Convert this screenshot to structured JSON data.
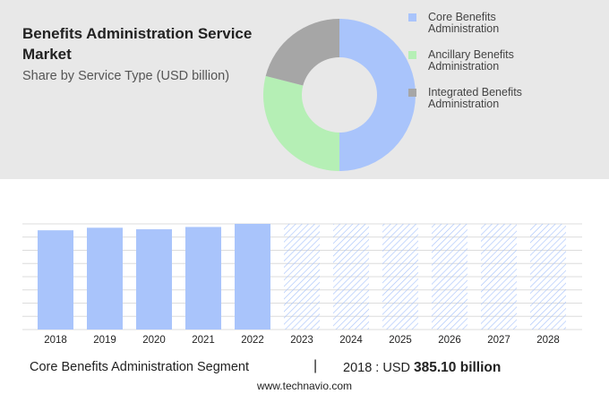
{
  "chart_data": [
    {
      "type": "pie",
      "title": "Benefits Administration Service Market",
      "subtitle": "Share by Service Type (USD billion)",
      "donut": true,
      "categories": [
        "Core Benefits Administration",
        "Ancillary Benefits Administration",
        "Integrated Benefits Administration"
      ],
      "values": [
        50,
        29,
        21
      ],
      "colors": [
        "#a9c4fb",
        "#b5efb5",
        "#a6a6a6"
      ]
    },
    {
      "type": "bar",
      "label": "Core Benefits Administration Segment",
      "currency": "USD",
      "categories": [
        "2018",
        "2019",
        "2020",
        "2021",
        "2022",
        "2023",
        "2024",
        "2025",
        "2026",
        "2027",
        "2028"
      ],
      "values": [
        385.1,
        395,
        389,
        398,
        410,
        null,
        null,
        null,
        null,
        null,
        null
      ],
      "value_labels": [
        "385.10 billion",
        null,
        null,
        null,
        null,
        null,
        null,
        null,
        null,
        null,
        null
      ],
      "color": "#a9c4fb",
      "ylim": [
        0,
        410
      ]
    }
  ],
  "footer": {
    "source": "www.technavio.com"
  }
}
